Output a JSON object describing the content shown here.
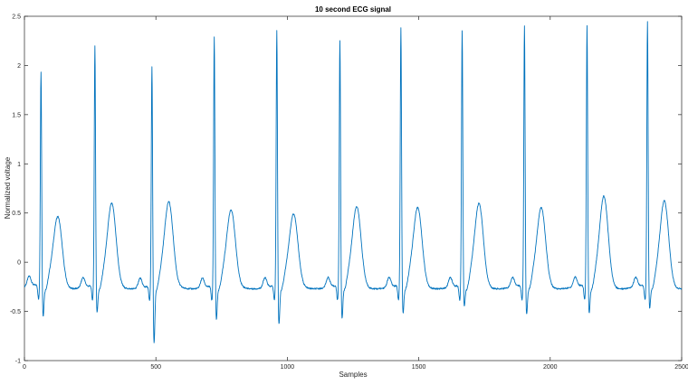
{
  "chart_data": {
    "type": "line",
    "title": "10 second ECG signal",
    "xlabel": "Samples",
    "ylabel": "Normalized voltage",
    "xlim": [
      0,
      2500
    ],
    "ylim": [
      -1,
      2.5
    ],
    "xticks": [
      0,
      500,
      1000,
      1500,
      2000,
      2500
    ],
    "yticks": [
      -1,
      -0.5,
      0,
      0.5,
      1,
      1.5,
      2,
      2.5
    ],
    "grid": false,
    "line_color": "#0072BD",
    "r_peaks": [
      {
        "x": 63,
        "r": 1.93,
        "s": -0.65,
        "t": 0.43
      },
      {
        "x": 268,
        "r": 2.19,
        "s": -0.61,
        "t": 0.55
      },
      {
        "x": 485,
        "r": 1.99,
        "s": -0.92,
        "t": 0.56
      },
      {
        "x": 722,
        "r": 2.29,
        "s": -0.68,
        "t": 0.48
      },
      {
        "x": 960,
        "r": 2.35,
        "s": -0.73,
        "t": 0.44
      },
      {
        "x": 1200,
        "r": 2.25,
        "s": -0.67,
        "t": 0.52
      },
      {
        "x": 1432,
        "r": 2.37,
        "s": -0.62,
        "t": 0.51
      },
      {
        "x": 1665,
        "r": 2.35,
        "s": -0.55,
        "t": 0.55
      },
      {
        "x": 1902,
        "r": 2.39,
        "s": -0.63,
        "t": 0.51
      },
      {
        "x": 2140,
        "r": 2.39,
        "s": -0.62,
        "t": 0.63
      },
      {
        "x": 2370,
        "r": 2.43,
        "s": -0.57,
        "t": 0.58
      }
    ],
    "baseline": -0.25
  }
}
